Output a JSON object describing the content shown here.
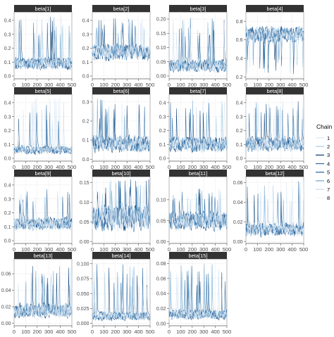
{
  "colors": {
    "strip_bg": "#333333",
    "strip_text": "#ffffff",
    "panel_border": "#333333",
    "grid": "#ebebeb",
    "axis_text": "#4d4d4d",
    "chains": [
      "#d7e6f5",
      "#a9cce3",
      "#0b3d72",
      "#2e6ca4",
      "#1f5f99",
      "#6fa7cf",
      "#c6dbef",
      "#eef4fb"
    ]
  },
  "legend": {
    "title": "Chain",
    "items": [
      "1",
      "2",
      "3",
      "4",
      "5",
      "6",
      "7",
      "8"
    ]
  },
  "chart_data": [
    {
      "type": "line",
      "title": "beta[1]",
      "xlim": [
        0,
        500
      ],
      "ylim": [
        -0.02,
        0.46
      ],
      "x_ticks": [
        0,
        100,
        200,
        300,
        400,
        500
      ],
      "x_tick_labels": [
        "0",
        "100",
        "200",
        "300",
        "400",
        "500"
      ],
      "y_ticks": [
        0.0,
        0.1,
        0.2,
        0.3,
        0.4
      ],
      "y_tick_labels": [
        "0.0",
        "0.1",
        "0.2",
        "0.3",
        "0.4"
      ],
      "series_summary": {
        "center": 0.09,
        "spread": 0.05,
        "spike_max": 0.43,
        "n_iter": 500,
        "n_chains": 8
      }
    },
    {
      "type": "line",
      "title": "beta[2]",
      "xlim": [
        0,
        500
      ],
      "ylim": [
        -0.02,
        0.46
      ],
      "x_ticks": [
        0,
        100,
        200,
        300,
        400,
        500
      ],
      "x_tick_labels": [
        "0",
        "100",
        "200",
        "300",
        "400",
        "500"
      ],
      "y_ticks": [
        0.0,
        0.1,
        0.2,
        0.3,
        0.4
      ],
      "y_tick_labels": [
        "0.0",
        "0.1",
        "0.2",
        "0.3",
        "0.4"
      ],
      "series_summary": {
        "center": 0.17,
        "spread": 0.07,
        "spike_max": 0.42,
        "n_iter": 500,
        "n_chains": 8
      }
    },
    {
      "type": "line",
      "title": "beta[3]",
      "xlim": [
        0,
        500
      ],
      "ylim": [
        -0.01,
        0.225
      ],
      "x_ticks": [
        0,
        100,
        200,
        300,
        400,
        500
      ],
      "x_tick_labels": [
        "0",
        "100",
        "200",
        "300",
        "400",
        "500"
      ],
      "y_ticks": [
        0.0,
        0.05,
        0.1,
        0.15,
        0.2
      ],
      "y_tick_labels": [
        "0.00",
        "0.05",
        "0.10",
        "0.15",
        "0.20"
      ],
      "series_summary": {
        "center": 0.035,
        "spread": 0.025,
        "spike_max": 0.21,
        "n_iter": 500,
        "n_chains": 8
      }
    },
    {
      "type": "line",
      "title": "beta[4]",
      "xlim": [
        0,
        500
      ],
      "ylim": [
        0.18,
        0.9
      ],
      "x_ticks": [
        0,
        100,
        200,
        300,
        400,
        500
      ],
      "x_tick_labels": [
        "0",
        "100",
        "200",
        "300",
        "400",
        "500"
      ],
      "y_ticks": [
        0.2,
        0.4,
        0.6,
        0.8
      ],
      "y_tick_labels": [
        "0.2",
        "0.4",
        "0.6",
        "0.8"
      ],
      "series_summary": {
        "center": 0.66,
        "spread": 0.1,
        "spike_min": 0.22,
        "n_iter": 500,
        "n_chains": 8
      }
    },
    {
      "type": "line",
      "title": "beta[5]",
      "xlim": [
        0,
        500
      ],
      "ylim": [
        -0.02,
        0.46
      ],
      "x_ticks": [
        0,
        100,
        200,
        300,
        400,
        500
      ],
      "x_tick_labels": [
        "0",
        "100",
        "200",
        "300",
        "400",
        "500"
      ],
      "y_ticks": [
        0.0,
        0.1,
        0.2,
        0.3,
        0.4
      ],
      "y_tick_labels": [
        "0.0",
        "0.1",
        "0.2",
        "0.3",
        "0.4"
      ],
      "series_summary": {
        "center": 0.06,
        "spread": 0.035,
        "spike_max": 0.43,
        "n_iter": 500,
        "n_chains": 8
      }
    },
    {
      "type": "line",
      "title": "beta[6]",
      "xlim": [
        0,
        500
      ],
      "ylim": [
        -0.01,
        0.34
      ],
      "x_ticks": [
        0,
        100,
        200,
        300,
        400,
        500
      ],
      "x_tick_labels": [
        "0",
        "100",
        "200",
        "300",
        "400",
        "500"
      ],
      "y_ticks": [
        0.0,
        0.1,
        0.2,
        0.3
      ],
      "y_tick_labels": [
        "0.0",
        "0.1",
        "0.2",
        "0.3"
      ],
      "series_summary": {
        "center": 0.08,
        "spread": 0.05,
        "spike_max": 0.32,
        "n_iter": 500,
        "n_chains": 8
      }
    },
    {
      "type": "line",
      "title": "beta[7]",
      "xlim": [
        0,
        500
      ],
      "ylim": [
        -0.02,
        0.46
      ],
      "x_ticks": [
        0,
        100,
        200,
        300,
        400,
        500
      ],
      "x_tick_labels": [
        "0",
        "100",
        "200",
        "300",
        "400",
        "500"
      ],
      "y_ticks": [
        0.0,
        0.1,
        0.2,
        0.3,
        0.4
      ],
      "y_tick_labels": [
        "0.0",
        "0.1",
        "0.2",
        "0.3",
        "0.4"
      ],
      "series_summary": {
        "center": 0.1,
        "spread": 0.06,
        "spike_max": 0.43,
        "n_iter": 500,
        "n_chains": 8
      }
    },
    {
      "type": "line",
      "title": "beta[8]",
      "xlim": [
        0,
        500
      ],
      "ylim": [
        -0.02,
        0.46
      ],
      "x_ticks": [
        0,
        100,
        200,
        300,
        400,
        500
      ],
      "x_tick_labels": [
        "0",
        "100",
        "200",
        "300",
        "400",
        "500"
      ],
      "y_ticks": [
        0.0,
        0.1,
        0.2,
        0.3,
        0.4
      ],
      "y_tick_labels": [
        "0.0",
        "0.1",
        "0.2",
        "0.3",
        "0.4"
      ],
      "series_summary": {
        "center": 0.1,
        "spread": 0.06,
        "spike_max": 0.42,
        "n_iter": 500,
        "n_chains": 8
      }
    },
    {
      "type": "line",
      "title": "beta[9]",
      "xlim": [
        0,
        500
      ],
      "ylim": [
        -0.02,
        0.46
      ],
      "x_ticks": [
        0,
        100,
        200,
        300,
        400,
        500
      ],
      "x_tick_labels": [
        "0",
        "100",
        "200",
        "300",
        "400",
        "500"
      ],
      "y_ticks": [
        0.0,
        0.1,
        0.2,
        0.3,
        0.4
      ],
      "y_tick_labels": [
        "0.0",
        "0.1",
        "0.2",
        "0.3",
        "0.4"
      ],
      "series_summary": {
        "center": 0.12,
        "spread": 0.05,
        "spike_max": 0.38,
        "n_iter": 500,
        "n_chains": 8
      }
    },
    {
      "type": "line",
      "title": "beta[10]",
      "xlim": [
        0,
        500
      ],
      "ylim": [
        -0.005,
        0.165
      ],
      "x_ticks": [
        0,
        100,
        200,
        300,
        400,
        500
      ],
      "x_tick_labels": [
        "0",
        "100",
        "200",
        "300",
        "400",
        "500"
      ],
      "y_ticks": [
        0.0,
        0.05,
        0.1,
        0.15
      ],
      "y_tick_labels": [
        "0.00",
        "0.05",
        "0.10",
        "0.15"
      ],
      "series_summary": {
        "center": 0.06,
        "spread": 0.04,
        "spike_max": 0.16,
        "n_iter": 500,
        "n_chains": 8
      }
    },
    {
      "type": "line",
      "title": "beta[11]",
      "xlim": [
        0,
        500
      ],
      "ylim": [
        -0.004,
        0.155
      ],
      "x_ticks": [
        0,
        100,
        200,
        300,
        400,
        500
      ],
      "x_tick_labels": [
        "0",
        "100",
        "200",
        "300",
        "400",
        "500"
      ],
      "y_ticks": [
        0.0,
        0.05,
        0.1
      ],
      "y_tick_labels": [
        "0.00",
        "0.05",
        "0.10"
      ],
      "series_summary": {
        "center": 0.05,
        "spread": 0.025,
        "spike_max": 0.13,
        "n_iter": 500,
        "n_chains": 8
      }
    },
    {
      "type": "line",
      "title": "beta[12]",
      "xlim": [
        0,
        500
      ],
      "ylim": [
        -0.002,
        0.066
      ],
      "x_ticks": [
        0,
        100,
        200,
        300,
        400,
        500
      ],
      "x_tick_labels": [
        "0",
        "100",
        "200",
        "300",
        "400",
        "500"
      ],
      "y_ticks": [
        0.0,
        0.02,
        0.04,
        0.06
      ],
      "y_tick_labels": [
        "0.00",
        "0.02",
        "0.04",
        "0.06"
      ],
      "series_summary": {
        "center": 0.012,
        "spread": 0.008,
        "spike_max": 0.062,
        "n_iter": 500,
        "n_chains": 8
      }
    },
    {
      "type": "line",
      "title": "beta[13]",
      "xlim": [
        0,
        500
      ],
      "ylim": [
        -0.003,
        0.078
      ],
      "x_ticks": [
        0,
        100,
        200,
        300,
        400,
        500
      ],
      "x_tick_labels": [
        "0",
        "100",
        "200",
        "300",
        "400",
        "500"
      ],
      "y_ticks": [
        0.0,
        0.02,
        0.04,
        0.06
      ],
      "y_tick_labels": [
        "0.00",
        "0.02",
        "0.04",
        "0.06"
      ],
      "series_summary": {
        "center": 0.015,
        "spread": 0.01,
        "spike_max": 0.07,
        "n_iter": 500,
        "n_chains": 8
      }
    },
    {
      "type": "line",
      "title": "beta[14]",
      "xlim": [
        0,
        500
      ],
      "ylim": [
        -0.004,
        0.108
      ],
      "x_ticks": [
        0,
        100,
        200,
        300,
        400,
        500
      ],
      "x_tick_labels": [
        "0",
        "100",
        "200",
        "300",
        "400",
        "500"
      ],
      "y_ticks": [
        0.0,
        0.025,
        0.05,
        0.075,
        0.1
      ],
      "y_tick_labels": [
        "0.000",
        "0.025",
        "0.050",
        "0.075",
        "0.100"
      ],
      "series_summary": {
        "center": 0.012,
        "spread": 0.008,
        "spike_max": 0.1,
        "n_iter": 500,
        "n_chains": 8
      }
    },
    {
      "type": "line",
      "title": "beta[15]",
      "xlim": [
        0,
        500
      ],
      "ylim": [
        -0.003,
        0.086
      ],
      "x_ticks": [
        0,
        100,
        200,
        300,
        400,
        500
      ],
      "x_tick_labels": [
        "0",
        "100",
        "200",
        "300",
        "400",
        "500"
      ],
      "y_ticks": [
        0.0,
        0.02,
        0.04,
        0.06,
        0.08
      ],
      "y_tick_labels": [
        "0.00",
        "0.02",
        "0.04",
        "0.06",
        "0.08"
      ],
      "series_summary": {
        "center": 0.012,
        "spread": 0.008,
        "spike_max": 0.08,
        "n_iter": 500,
        "n_chains": 8
      }
    }
  ]
}
